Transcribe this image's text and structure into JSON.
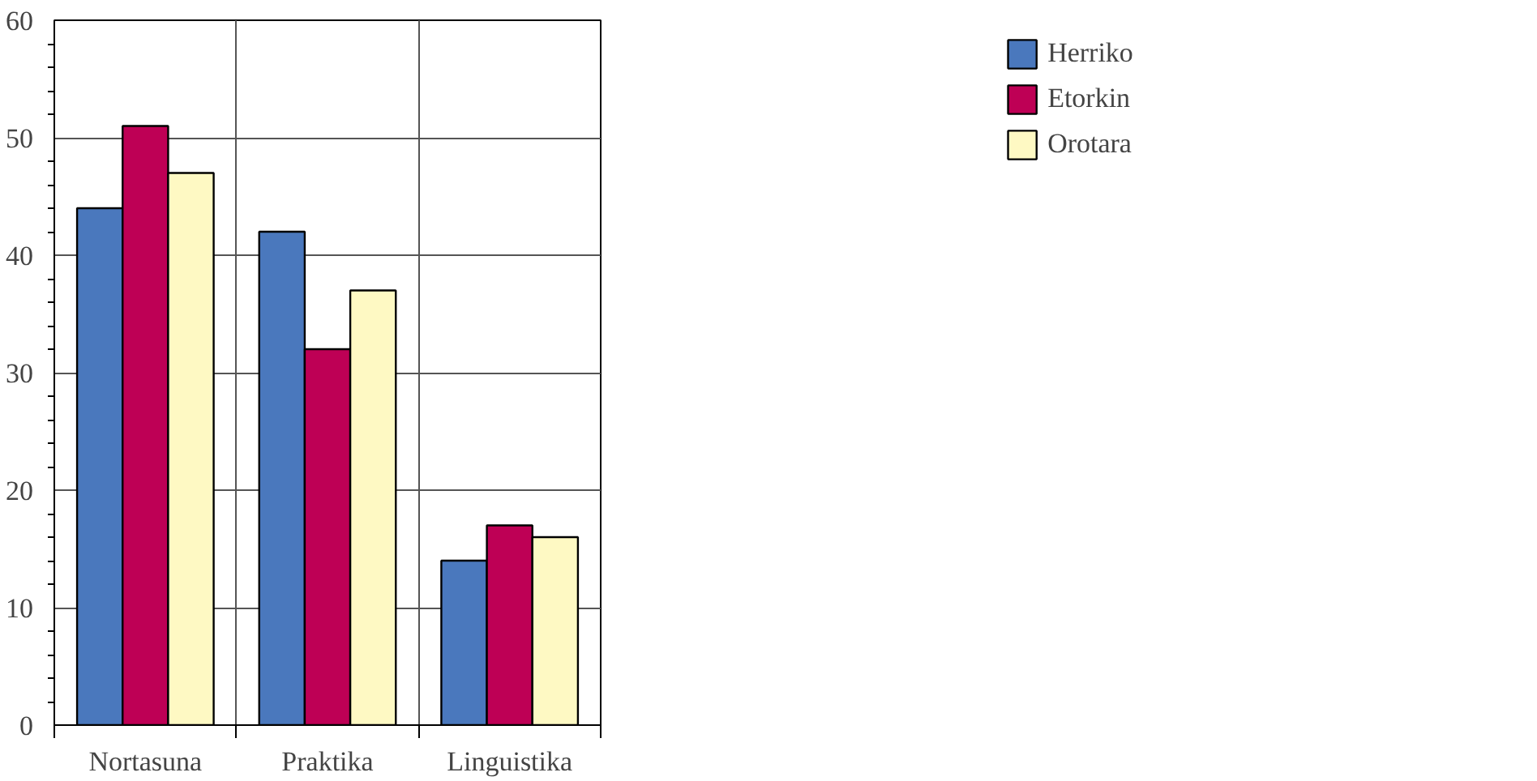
{
  "chart_data": {
    "type": "bar",
    "categories": [
      "Nortasuna",
      "Praktika",
      "Linguistika"
    ],
    "series": [
      {
        "name": "Herriko",
        "color": "#4a78bd",
        "values": [
          44,
          42,
          14
        ]
      },
      {
        "name": "Etorkin",
        "color": "#be0055",
        "values": [
          51,
          32,
          17
        ]
      },
      {
        "name": "Orotara",
        "color": "#fef9c3",
        "values": [
          47,
          37,
          16
        ]
      }
    ],
    "ylim": [
      0,
      60
    ],
    "yticks": [
      0,
      10,
      20,
      30,
      40,
      50,
      60
    ],
    "grid": true,
    "legend": "top right"
  }
}
